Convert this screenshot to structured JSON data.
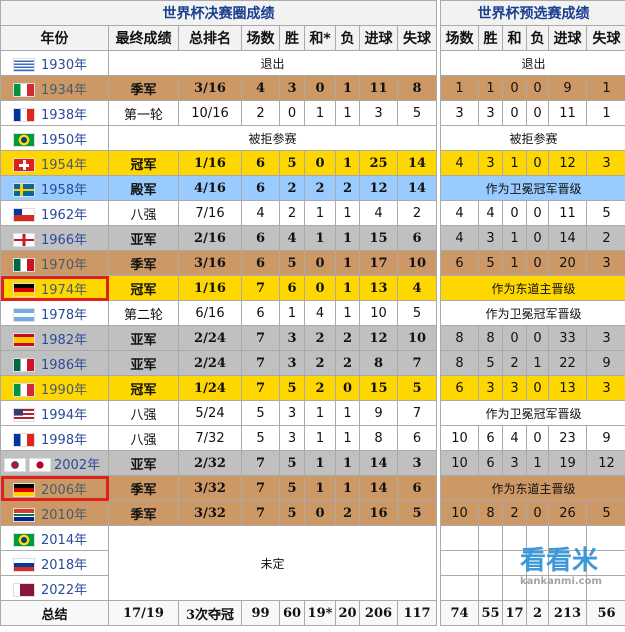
{
  "finals": {
    "title": "世界杯决赛圈成绩",
    "headers": [
      "年份",
      "最终成绩",
      "总排名",
      "场数",
      "胜",
      "和*",
      "负",
      "进球",
      "失球"
    ]
  },
  "qualifying": {
    "title": "世界杯预选赛成绩",
    "headers": [
      "场数",
      "胜",
      "和",
      "负",
      "进球",
      "失球"
    ]
  },
  "colors": {
    "gold": "#ffd700",
    "silver": "#c0c0c0",
    "bronze": "#cc9966",
    "blue": "#9acbff",
    "highlight": "#e0201b"
  },
  "rows": [
    {
      "year": "1930年",
      "flag": "uruguay",
      "note": "退出",
      "qnote": "退出"
    },
    {
      "year": "1934年",
      "flag": "italy",
      "style": "bronze",
      "result": "季军",
      "rank": "3/16",
      "stats": [
        "4",
        "3",
        "0",
        "1",
        "11",
        "8"
      ],
      "q": [
        "1",
        "1",
        "0",
        "0",
        "9",
        "1"
      ]
    },
    {
      "year": "1938年",
      "flag": "france",
      "result": "第一轮",
      "rank": "10/16",
      "stats": [
        "2",
        "0",
        "1",
        "1",
        "3",
        "5"
      ],
      "q": [
        "3",
        "3",
        "0",
        "0",
        "11",
        "1"
      ]
    },
    {
      "year": "1950年",
      "flag": "brazil",
      "note": "被拒参赛",
      "qnote": "被拒参赛"
    },
    {
      "year": "1954年",
      "flag": "switzerland",
      "style": "gold",
      "result": "冠军",
      "rank": "1/16",
      "stats": [
        "6",
        "5",
        "0",
        "1",
        "25",
        "14"
      ],
      "q": [
        "4",
        "3",
        "1",
        "0",
        "12",
        "3"
      ]
    },
    {
      "year": "1958年",
      "flag": "sweden",
      "style": "blue",
      "result": "殿军",
      "rank": "4/16",
      "stats": [
        "6",
        "2",
        "2",
        "2",
        "12",
        "14"
      ],
      "qnote": "作为卫冕冠军晋级"
    },
    {
      "year": "1962年",
      "flag": "chile",
      "result": "八强",
      "rank": "7/16",
      "stats": [
        "4",
        "2",
        "1",
        "1",
        "4",
        "2"
      ],
      "q": [
        "4",
        "4",
        "0",
        "0",
        "11",
        "5"
      ]
    },
    {
      "year": "1966年",
      "flag": "england",
      "style": "silver",
      "result": "亚军",
      "rank": "2/16",
      "stats": [
        "6",
        "4",
        "1",
        "1",
        "15",
        "6"
      ],
      "q": [
        "4",
        "3",
        "1",
        "0",
        "14",
        "2"
      ]
    },
    {
      "year": "1970年",
      "flag": "mexico",
      "style": "bronze",
      "result": "季军",
      "rank": "3/16",
      "stats": [
        "6",
        "5",
        "0",
        "1",
        "17",
        "10"
      ],
      "q": [
        "6",
        "5",
        "1",
        "0",
        "20",
        "3"
      ]
    },
    {
      "year": "1974年",
      "flag": "germany",
      "style": "gold",
      "highlight": true,
      "result": "冠军",
      "rank": "1/16",
      "stats": [
        "7",
        "6",
        "0",
        "1",
        "13",
        "4"
      ],
      "qnote": "作为东道主晋级"
    },
    {
      "year": "1978年",
      "flag": "argentina",
      "result": "第二轮",
      "rank": "6/16",
      "stats": [
        "6",
        "1",
        "4",
        "1",
        "10",
        "5"
      ],
      "qnote": "作为卫冕冠军晋级"
    },
    {
      "year": "1982年",
      "flag": "spain",
      "style": "silver",
      "result": "亚军",
      "rank": "2/24",
      "stats": [
        "7",
        "3",
        "2",
        "2",
        "12",
        "10"
      ],
      "q": [
        "8",
        "8",
        "0",
        "0",
        "33",
        "3"
      ]
    },
    {
      "year": "1986年",
      "flag": "mexico",
      "style": "silver",
      "result": "亚军",
      "rank": "2/24",
      "stats": [
        "7",
        "3",
        "2",
        "2",
        "8",
        "7"
      ],
      "q": [
        "8",
        "5",
        "2",
        "1",
        "22",
        "9"
      ]
    },
    {
      "year": "1990年",
      "flag": "italy",
      "style": "gold",
      "result": "冠军",
      "rank": "1/24",
      "stats": [
        "7",
        "5",
        "2",
        "0",
        "15",
        "5"
      ],
      "q": [
        "6",
        "3",
        "3",
        "0",
        "13",
        "3"
      ]
    },
    {
      "year": "1994年",
      "flag": "usa",
      "result": "八强",
      "rank": "5/24",
      "stats": [
        "5",
        "3",
        "1",
        "1",
        "9",
        "7"
      ],
      "qnote": "作为卫冕冠军晋级"
    },
    {
      "year": "1998年",
      "flag": "france",
      "result": "八强",
      "rank": "7/32",
      "stats": [
        "5",
        "3",
        "1",
        "1",
        "8",
        "6"
      ],
      "q": [
        "10",
        "6",
        "4",
        "0",
        "23",
        "9"
      ]
    },
    {
      "year": "2002年",
      "flag": "korea-japan",
      "style": "silver",
      "result": "亚军",
      "rank": "2/32",
      "stats": [
        "7",
        "5",
        "1",
        "1",
        "14",
        "3"
      ],
      "q": [
        "10",
        "6",
        "3",
        "1",
        "19",
        "12"
      ]
    },
    {
      "year": "2006年",
      "flag": "germany",
      "style": "bronze",
      "highlight": true,
      "result": "季军",
      "rank": "3/32",
      "stats": [
        "7",
        "5",
        "1",
        "1",
        "14",
        "6"
      ],
      "qnote": "作为东道主晋级"
    },
    {
      "year": "2010年",
      "flag": "south-africa",
      "style": "bronze",
      "result": "季军",
      "rank": "3/32",
      "stats": [
        "7",
        "5",
        "0",
        "2",
        "16",
        "5"
      ],
      "q": [
        "10",
        "8",
        "2",
        "0",
        "26",
        "5"
      ]
    },
    {
      "year": "2014年",
      "flag": "brazil",
      "tbd": "未定",
      "q": [
        "",
        "",
        "",
        "",
        "",
        ""
      ]
    },
    {
      "year": "2018年",
      "flag": "russia",
      "q": [
        "",
        "",
        "",
        "",
        "",
        ""
      ]
    },
    {
      "year": "2022年",
      "flag": "qatar",
      "q": [
        "",
        "",
        "",
        "",
        "",
        ""
      ]
    }
  ],
  "totals": {
    "label": "总结",
    "result": "17/19",
    "rank": "3次夺冠",
    "stats": [
      "99",
      "60",
      "19*",
      "20",
      "206",
      "117"
    ],
    "q": [
      "74",
      "55",
      "17",
      "2",
      "213",
      "56"
    ]
  },
  "watermark": {
    "text": "看看米",
    "sub": "kankanmi.com"
  }
}
